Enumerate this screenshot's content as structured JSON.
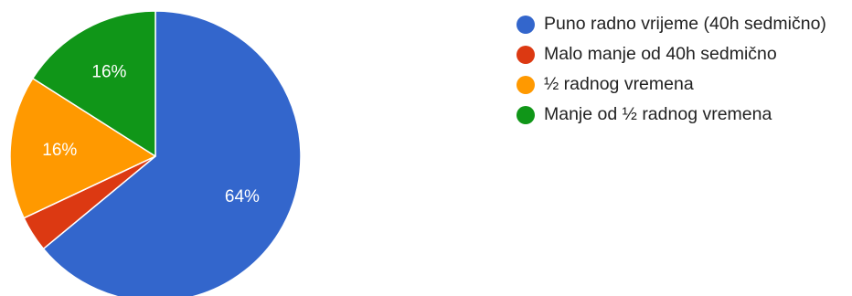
{
  "chart_data": {
    "type": "pie",
    "title": "",
    "categories": [
      "Puno radno vrijeme (40h sedmično)",
      "Malo manje od 40h sedmično",
      "½ radnog vremena",
      "Manje od ½ radnog vremena"
    ],
    "values": [
      64,
      4,
      16,
      16
    ],
    "value_labels": [
      "64%",
      "",
      "16%",
      "16%"
    ],
    "colors": [
      "#3366cc",
      "#dc3912",
      "#ff9900",
      "#109618"
    ],
    "legend_position": "right",
    "start_angle_deg": 90,
    "direction": "clockwise"
  }
}
